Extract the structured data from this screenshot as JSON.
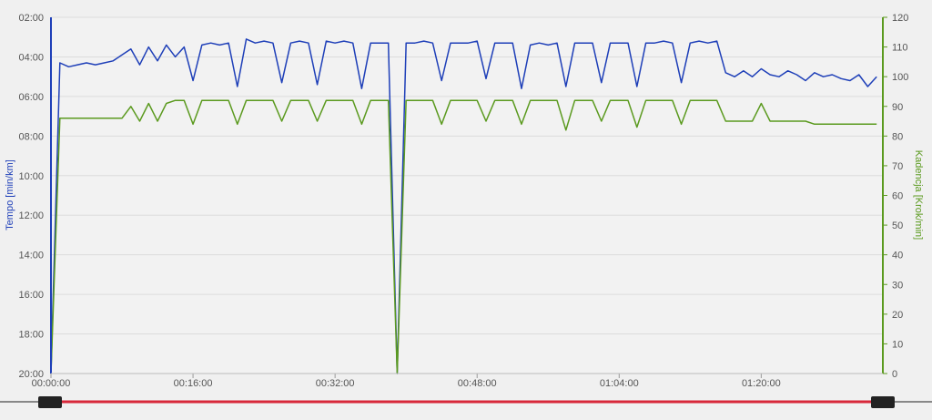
{
  "chart_data": {
    "type": "line",
    "y_label": "Tempo [min/km]",
    "y2_label": "Kadencja [Krok/min]",
    "x": [
      0,
      1,
      2,
      3,
      4,
      5,
      6,
      7,
      8,
      9,
      10,
      11,
      12,
      13,
      14,
      15,
      16,
      17,
      18,
      19,
      20,
      21,
      22,
      23,
      24,
      25,
      26,
      27,
      28,
      29,
      30,
      31,
      32,
      33,
      34,
      35,
      36,
      37,
      38,
      39,
      40,
      41,
      42,
      43,
      44,
      45,
      46,
      47,
      48,
      49,
      50,
      51,
      52,
      53,
      54,
      55,
      56,
      57,
      58,
      59,
      60,
      61,
      62,
      63,
      64,
      65,
      66,
      67,
      68,
      69,
      70,
      71,
      72,
      73,
      74,
      75,
      76,
      77,
      78,
      79,
      80,
      81,
      82,
      83,
      84,
      85,
      86,
      87,
      88,
      89,
      90,
      91,
      92,
      93
    ],
    "xlim": [
      0,
      93.7
    ],
    "xticks": [
      {
        "value": 0,
        "label": "00:00:00"
      },
      {
        "value": 16,
        "label": "00:16:00"
      },
      {
        "value": 32,
        "label": "00:32:00"
      },
      {
        "value": 48,
        "label": "00:48:00"
      },
      {
        "value": 64,
        "label": "01:04:00"
      },
      {
        "value": 80,
        "label": "01:20:00"
      }
    ],
    "ylim": [
      2,
      20
    ],
    "y_inverted": true,
    "yticks": [
      {
        "value": 2,
        "label": "02:00"
      },
      {
        "value": 4,
        "label": "04:00"
      },
      {
        "value": 6,
        "label": "06:00"
      },
      {
        "value": 8,
        "label": "08:00"
      },
      {
        "value": 10,
        "label": "10:00"
      },
      {
        "value": 12,
        "label": "12:00"
      },
      {
        "value": 14,
        "label": "14:00"
      },
      {
        "value": 16,
        "label": "16:00"
      },
      {
        "value": 18,
        "label": "18:00"
      },
      {
        "value": 20,
        "label": "20:00"
      }
    ],
    "y2lim": [
      0,
      120
    ],
    "y2ticks": [
      0,
      10,
      20,
      30,
      40,
      50,
      60,
      70,
      80,
      90,
      100,
      110,
      120
    ],
    "grid": true,
    "series": [
      {
        "name": "Tempo",
        "color": "#1e3fb8",
        "values": [
          20,
          4.3,
          4.5,
          4.4,
          4.3,
          4.4,
          4.3,
          4.2,
          3.9,
          3.6,
          4.4,
          3.5,
          4.2,
          3.4,
          4.0,
          3.5,
          5.2,
          3.4,
          3.3,
          3.4,
          3.3,
          5.5,
          3.1,
          3.3,
          3.2,
          3.3,
          5.3,
          3.3,
          3.2,
          3.3,
          5.4,
          3.2,
          3.3,
          3.2,
          3.3,
          5.6,
          3.3,
          3.3,
          3.3,
          20,
          3.3,
          3.3,
          3.2,
          3.3,
          5.2,
          3.3,
          3.3,
          3.3,
          3.2,
          5.1,
          3.3,
          3.3,
          3.3,
          5.6,
          3.4,
          3.3,
          3.4,
          3.3,
          5.5,
          3.3,
          3.3,
          3.3,
          5.3,
          3.3,
          3.3,
          3.3,
          5.5,
          3.3,
          3.3,
          3.2,
          3.3,
          5.3,
          3.3,
          3.2,
          3.3,
          3.2,
          4.8,
          5.0,
          4.7,
          5.0,
          4.6,
          4.9,
          5.0,
          4.7,
          4.9,
          5.2,
          4.8,
          5.0,
          4.9,
          5.1,
          5.2,
          4.9,
          5.5,
          5.0
        ]
      },
      {
        "name": "Kadencja",
        "color": "#5b9a1f",
        "axis": "y2",
        "values": [
          0,
          86,
          86,
          86,
          86,
          86,
          86,
          86,
          86,
          90,
          85,
          91,
          85,
          91,
          92,
          92,
          84,
          92,
          92,
          92,
          92,
          84,
          92,
          92,
          92,
          92,
          85,
          92,
          92,
          92,
          85,
          92,
          92,
          92,
          92,
          84,
          92,
          92,
          92,
          0,
          92,
          92,
          92,
          92,
          84,
          92,
          92,
          92,
          92,
          85,
          92,
          92,
          92,
          84,
          92,
          92,
          92,
          92,
          82,
          92,
          92,
          92,
          85,
          92,
          92,
          92,
          83,
          92,
          92,
          92,
          92,
          84,
          92,
          92,
          92,
          92,
          85,
          85,
          85,
          85,
          91,
          85,
          85,
          85,
          85,
          85,
          84,
          84,
          84,
          84,
          84,
          84,
          84,
          84
        ]
      }
    ]
  }
}
